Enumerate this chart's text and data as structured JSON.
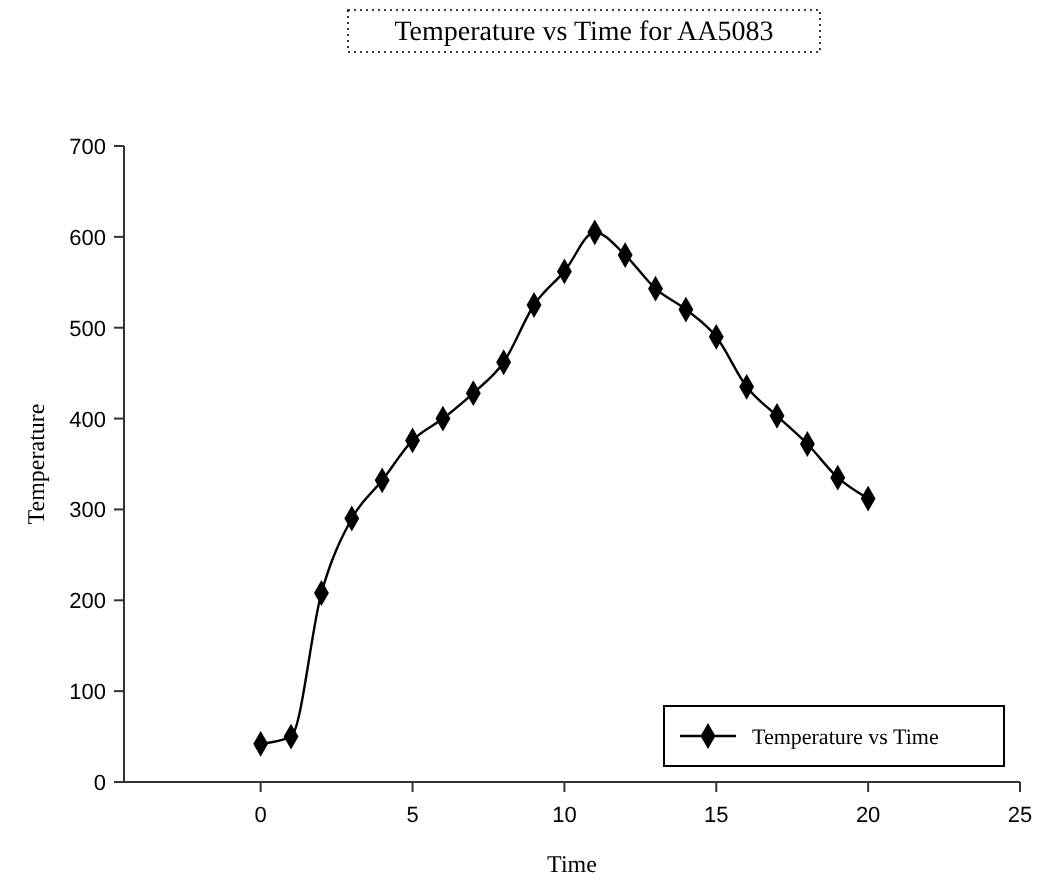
{
  "chart_data": {
    "type": "line",
    "title": "Temperature vs Time for AA5083",
    "xlabel": "Time",
    "ylabel": "Temperature",
    "x": [
      0,
      1,
      2,
      3,
      4,
      5,
      6,
      7,
      8,
      9,
      10,
      11,
      12,
      13,
      14,
      15,
      16,
      17,
      18,
      19,
      20
    ],
    "series": [
      {
        "name": "Temperature vs Time",
        "color": "#000000",
        "values": [
          42,
          50,
          208,
          290,
          332,
          376,
          400,
          428,
          462,
          525,
          562,
          605,
          580,
          543,
          520,
          490,
          435,
          403,
          372,
          335,
          312
        ]
      }
    ],
    "xlim": [
      -4.5,
      25
    ],
    "xticks": [
      0,
      5,
      10,
      15,
      20,
      25
    ],
    "ylim": [
      0,
      700
    ],
    "yticks": [
      0,
      100,
      200,
      300,
      400,
      500,
      600,
      700
    ],
    "grid": false,
    "legend": "bottom right",
    "marker": "diamond",
    "line_style": "solid"
  }
}
